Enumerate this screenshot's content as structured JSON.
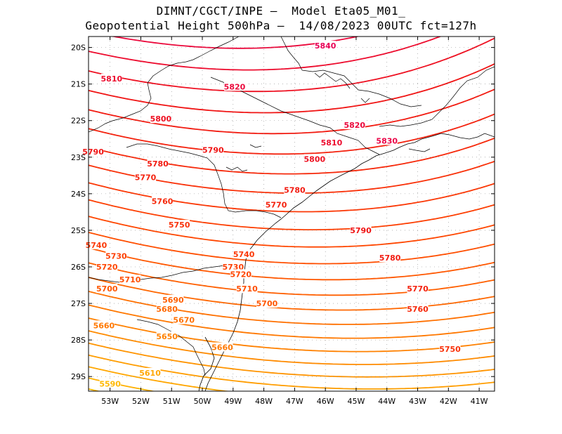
{
  "header": {
    "title_line1": "DIMNT/CGCT/INPE –  Model Eta05_M01_",
    "title_line2": "Geopotential Height 500hPa –  14/08/2023 00UTC fct=127h"
  },
  "map": {
    "extent": {
      "lon_min": -53.7,
      "lon_max": -40.5,
      "lat_min": -29.4,
      "lat_max": -19.7
    },
    "lat_ticks": [
      {
        "value": -20,
        "label": "20S"
      },
      {
        "value": -21,
        "label": "21S"
      },
      {
        "value": -22,
        "label": "22S"
      },
      {
        "value": -23,
        "label": "23S"
      },
      {
        "value": -24,
        "label": "24S"
      },
      {
        "value": -25,
        "label": "25S"
      },
      {
        "value": -26,
        "label": "26S"
      },
      {
        "value": -27,
        "label": "27S"
      },
      {
        "value": -28,
        "label": "28S"
      },
      {
        "value": -29,
        "label": "29S"
      }
    ],
    "lon_ticks": [
      {
        "value": -53,
        "label": "53W"
      },
      {
        "value": -52,
        "label": "52W"
      },
      {
        "value": -51,
        "label": "51W"
      },
      {
        "value": -50,
        "label": "50W"
      },
      {
        "value": -49,
        "label": "49W"
      },
      {
        "value": -48,
        "label": "48W"
      },
      {
        "value": -47,
        "label": "47W"
      },
      {
        "value": -46,
        "label": "46W"
      },
      {
        "value": -45,
        "label": "45W"
      },
      {
        "value": -44,
        "label": "44W"
      },
      {
        "value": -43,
        "label": "43W"
      },
      {
        "value": -42,
        "label": "42W"
      },
      {
        "value": -41,
        "label": "41W"
      }
    ],
    "contour_levels": [
      5590,
      5600,
      5610,
      5620,
      5630,
      5640,
      5650,
      5660,
      5670,
      5680,
      5690,
      5700,
      5710,
      5720,
      5730,
      5740,
      5750,
      5760,
      5770,
      5780,
      5790,
      5800,
      5810,
      5820,
      5830,
      5840
    ],
    "contour_labels": [
      {
        "text": "5840",
        "lon": -46.0,
        "lat": -19.95
      },
      {
        "text": "5810",
        "lon": -52.95,
        "lat": -20.85
      },
      {
        "text": "5820",
        "lon": -48.95,
        "lat": -21.07
      },
      {
        "text": "5800",
        "lon": -51.35,
        "lat": -21.95
      },
      {
        "text": "5820",
        "lon": -45.05,
        "lat": -22.12
      },
      {
        "text": "5830",
        "lon": -44.0,
        "lat": -22.55
      },
      {
        "text": "5810",
        "lon": -45.8,
        "lat": -22.6
      },
      {
        "text": "5790",
        "lon": -53.55,
        "lat": -22.85
      },
      {
        "text": "5790",
        "lon": -49.65,
        "lat": -22.8
      },
      {
        "text": "5800",
        "lon": -46.35,
        "lat": -23.05
      },
      {
        "text": "5780",
        "lon": -51.45,
        "lat": -23.18
      },
      {
        "text": "5770",
        "lon": -51.85,
        "lat": -23.55
      },
      {
        "text": "5780",
        "lon": -47.0,
        "lat": -23.9
      },
      {
        "text": "5760",
        "lon": -51.3,
        "lat": -24.2
      },
      {
        "text": "5770",
        "lon": -47.6,
        "lat": -24.3
      },
      {
        "text": "5750",
        "lon": -50.75,
        "lat": -24.85
      },
      {
        "text": "5790",
        "lon": -44.85,
        "lat": -25.0
      },
      {
        "text": "5740",
        "lon": -53.45,
        "lat": -25.4
      },
      {
        "text": "5740",
        "lon": -48.65,
        "lat": -25.65
      },
      {
        "text": "5730",
        "lon": -52.8,
        "lat": -25.7
      },
      {
        "text": "5780",
        "lon": -43.9,
        "lat": -25.75
      },
      {
        "text": "5720",
        "lon": -53.1,
        "lat": -26.0
      },
      {
        "text": "5730",
        "lon": -49.0,
        "lat": -26.0
      },
      {
        "text": "5720",
        "lon": -48.75,
        "lat": -26.2
      },
      {
        "text": "5710",
        "lon": -52.35,
        "lat": -26.35
      },
      {
        "text": "5700",
        "lon": -53.1,
        "lat": -26.6
      },
      {
        "text": "5710",
        "lon": -48.55,
        "lat": -26.6
      },
      {
        "text": "5770",
        "lon": -43.0,
        "lat": -26.6
      },
      {
        "text": "5690",
        "lon": -50.95,
        "lat": -26.9
      },
      {
        "text": "5700",
        "lon": -47.9,
        "lat": -27.0
      },
      {
        "text": "5680",
        "lon": -51.15,
        "lat": -27.15
      },
      {
        "text": "5760",
        "lon": -43.0,
        "lat": -27.15
      },
      {
        "text": "5670",
        "lon": -50.6,
        "lat": -27.45
      },
      {
        "text": "5660",
        "lon": -53.2,
        "lat": -27.6
      },
      {
        "text": "5650",
        "lon": -51.15,
        "lat": -27.9
      },
      {
        "text": "5660",
        "lon": -49.35,
        "lat": -28.2
      },
      {
        "text": "5750",
        "lon": -41.95,
        "lat": -28.25
      },
      {
        "text": "5610",
        "lon": -51.7,
        "lat": -28.9
      },
      {
        "text": "5590",
        "lon": -53.0,
        "lat": -29.2
      }
    ],
    "colors": {
      "high": "#e8004c",
      "mid": "#ff2a00",
      "low_mid": "#ff6a00",
      "low": "#ffb000",
      "coast": "#000000",
      "grid": "#888888"
    }
  }
}
